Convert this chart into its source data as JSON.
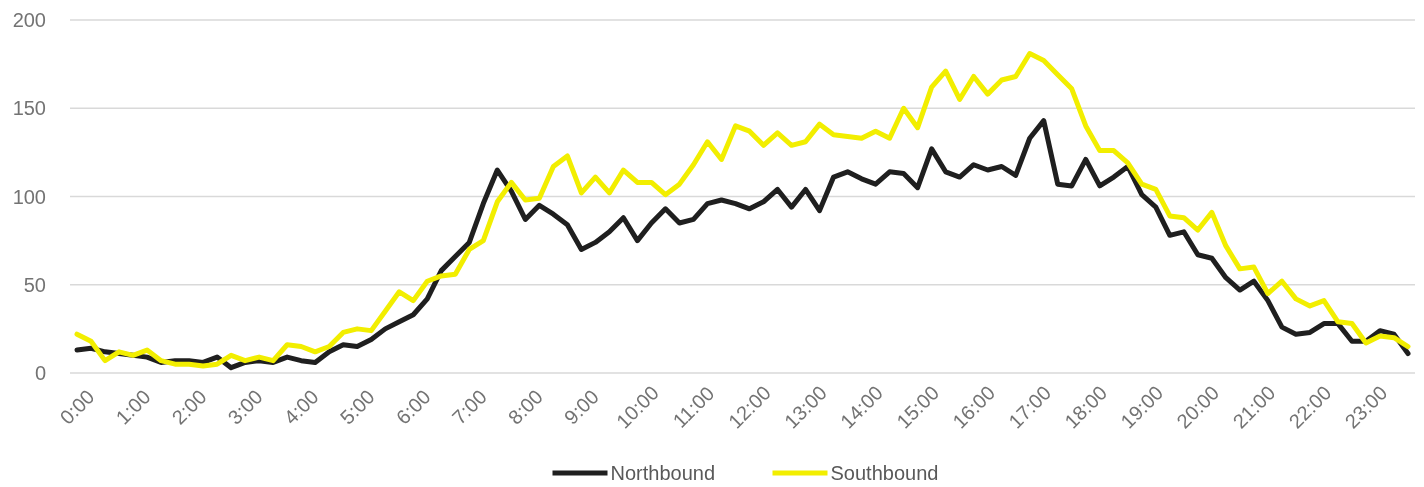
{
  "chart_data": {
    "type": "line",
    "categories": [
      "0:00",
      null,
      null,
      null,
      "1:00",
      null,
      null,
      null,
      "2:00",
      null,
      null,
      null,
      "3:00",
      null,
      null,
      null,
      "4:00",
      null,
      null,
      null,
      "5:00",
      null,
      null,
      null,
      "6:00",
      null,
      null,
      null,
      "7:00",
      null,
      null,
      null,
      "8:00",
      null,
      null,
      null,
      "9:00",
      null,
      null,
      null,
      "10:00",
      null,
      null,
      null,
      "11:00",
      null,
      null,
      null,
      "12:00",
      null,
      null,
      null,
      "13:00",
      null,
      null,
      null,
      "14:00",
      null,
      null,
      null,
      "15:00",
      null,
      null,
      null,
      "16:00",
      null,
      null,
      null,
      "17:00",
      null,
      null,
      null,
      "18:00",
      null,
      null,
      null,
      "19:00",
      null,
      null,
      null,
      "20:00",
      null,
      null,
      null,
      "21:00",
      null,
      null,
      null,
      "22:00",
      null,
      null,
      null,
      "23:00",
      null,
      null,
      null
    ],
    "series": [
      {
        "name": "Northbound",
        "color": "#1f1f1f",
        "values": [
          13,
          14,
          12,
          11,
          10,
          9,
          6,
          7,
          7,
          6,
          9,
          3,
          6,
          7,
          6,
          9,
          7,
          6,
          12,
          16,
          15,
          19,
          25,
          29,
          33,
          42,
          58,
          66,
          74,
          96,
          115,
          103,
          87,
          95,
          90,
          84,
          70,
          74,
          80,
          88,
          75,
          85,
          93,
          85,
          87,
          96,
          98,
          96,
          93,
          97,
          104,
          94,
          104,
          92,
          111,
          114,
          110,
          107,
          114,
          113,
          105,
          127,
          114,
          111,
          118,
          115,
          117,
          112,
          133,
          143,
          107,
          106,
          121,
          106,
          111,
          117,
          101,
          94,
          78,
          80,
          67,
          65,
          54,
          47,
          52,
          41,
          26,
          22,
          23,
          28,
          28,
          18,
          18,
          24,
          22,
          11
        ]
      },
      {
        "name": "Southbound",
        "color": "#f2ee00",
        "values": [
          22,
          18,
          7,
          12,
          10,
          13,
          7,
          5,
          5,
          4,
          5,
          10,
          7,
          9,
          7,
          16,
          15,
          12,
          15,
          23,
          25,
          24,
          35,
          46,
          41,
          52,
          55,
          56,
          70,
          75,
          97,
          108,
          98,
          99,
          117,
          123,
          102,
          111,
          102,
          115,
          108,
          108,
          101,
          107,
          118,
          131,
          121,
          140,
          137,
          129,
          136,
          129,
          131,
          141,
          135,
          134,
          133,
          137,
          133,
          150,
          139,
          162,
          171,
          155,
          168,
          158,
          166,
          168,
          181,
          177,
          169,
          161,
          140,
          126,
          126,
          119,
          107,
          104,
          89,
          88,
          81,
          91,
          72,
          59,
          60,
          45,
          52,
          42,
          38,
          41,
          29,
          28,
          17,
          21,
          20,
          15
        ]
      }
    ],
    "ylim": [
      0,
      200
    ],
    "yticks": [
      0,
      50,
      100,
      150,
      200
    ],
    "grid": "y",
    "legend": "bottom",
    "line_style": "solid"
  }
}
